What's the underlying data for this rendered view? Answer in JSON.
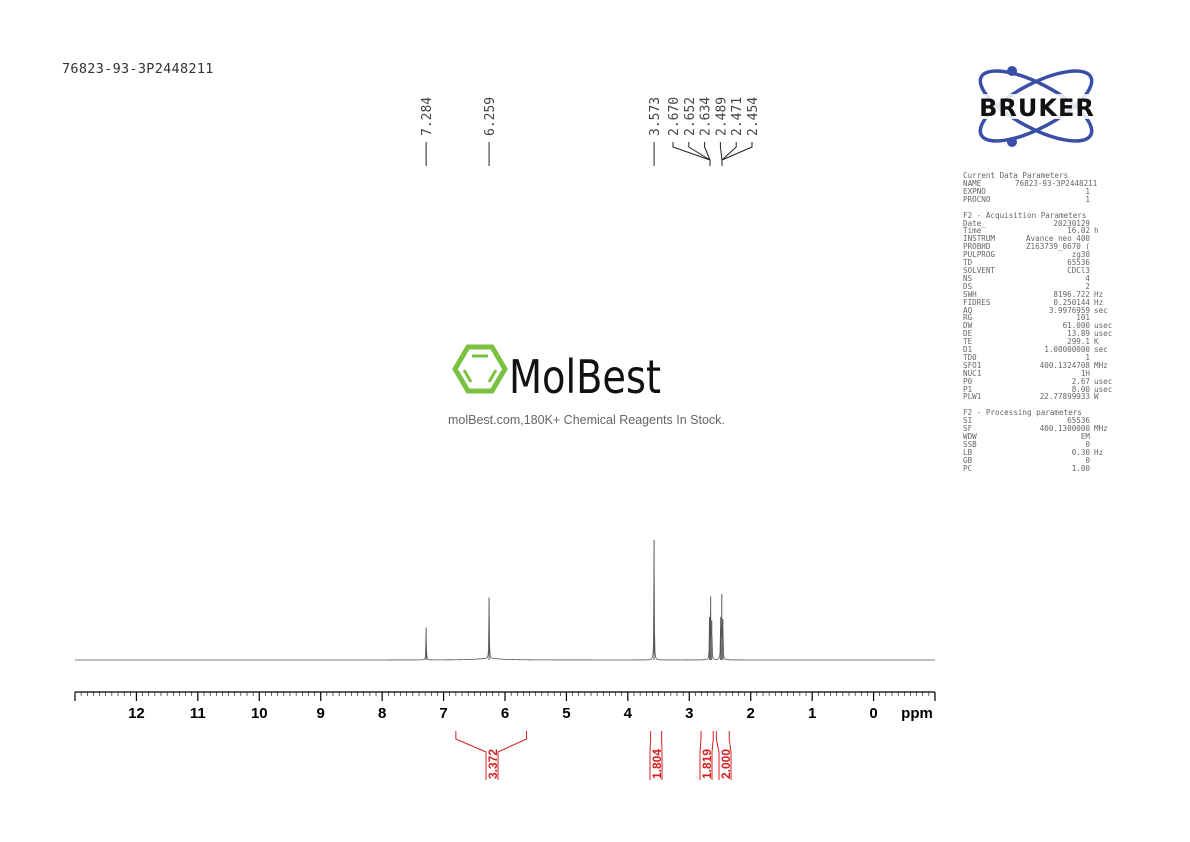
{
  "sample_title": "76823-93-3P2448211",
  "logos": {
    "bruker": "BRUKER",
    "molbest": "MolBest",
    "molbest_tagline": "molBest.com,180K+ Chemical Reagents In Stock.",
    "bruker_color": "#3a4fa8",
    "molbest_color": "#7cc242"
  },
  "parameters": {
    "current_header": "Current Data Parameters",
    "current": [
      {
        "k": "NAME",
        "v": "76823-93-3P2448211",
        "u": ""
      },
      {
        "k": "EXPNO",
        "v": "1",
        "u": ""
      },
      {
        "k": "PROCNO",
        "v": "1",
        "u": ""
      }
    ],
    "acq_header": "F2 - Acquisition Parameters",
    "acquisition": [
      {
        "k": "Date_",
        "v": "20230129",
        "u": ""
      },
      {
        "k": "Time",
        "v": "16.02",
        "u": "h"
      },
      {
        "k": "INSTRUM",
        "v": "Avance neo 400",
        "u": ""
      },
      {
        "k": "PROBHD",
        "v": "Z163739_0670 (",
        "u": ""
      },
      {
        "k": "PULPROG",
        "v": "zg30",
        "u": ""
      },
      {
        "k": "TD",
        "v": "65536",
        "u": ""
      },
      {
        "k": "SOLVENT",
        "v": "CDCl3",
        "u": ""
      },
      {
        "k": "NS",
        "v": "4",
        "u": ""
      },
      {
        "k": "DS",
        "v": "2",
        "u": ""
      },
      {
        "k": "SWH",
        "v": "8196.722",
        "u": "Hz"
      },
      {
        "k": "FIDRES",
        "v": "0.250144",
        "u": "Hz"
      },
      {
        "k": "AQ",
        "v": "3.9976959",
        "u": "sec"
      },
      {
        "k": "RG",
        "v": "101",
        "u": ""
      },
      {
        "k": "DW",
        "v": "61.000",
        "u": "usec"
      },
      {
        "k": "DE",
        "v": "13.89",
        "u": "usec"
      },
      {
        "k": "TE",
        "v": "299.1",
        "u": "K"
      },
      {
        "k": "D1",
        "v": "1.00000000",
        "u": "sec"
      },
      {
        "k": "TD0",
        "v": "1",
        "u": ""
      },
      {
        "k": "SFO1",
        "v": "400.1324708",
        "u": "MHz"
      },
      {
        "k": "NUC1",
        "v": "1H",
        "u": ""
      },
      {
        "k": "P0",
        "v": "2.67",
        "u": "usec"
      },
      {
        "k": "P1",
        "v": "8.00",
        "u": "usec"
      },
      {
        "k": "PLW1",
        "v": "22.77899933",
        "u": "W"
      }
    ],
    "proc_header": "F2 - Processing parameters",
    "processing": [
      {
        "k": "SI",
        "v": "65536",
        "u": ""
      },
      {
        "k": "SF",
        "v": "400.1300000",
        "u": "MHz"
      },
      {
        "k": "WDW",
        "v": "EM",
        "u": ""
      },
      {
        "k": "SSB",
        "v": "0",
        "u": ""
      },
      {
        "k": "LB",
        "v": "0.30",
        "u": "Hz"
      },
      {
        "k": "GB",
        "v": "0",
        "u": ""
      },
      {
        "k": "PC",
        "v": "1.00",
        "u": ""
      }
    ]
  },
  "chart_data": {
    "type": "line",
    "xlabel": "ppm",
    "xlim": [
      13,
      -1
    ],
    "x_ticks": [
      12,
      11,
      10,
      9,
      8,
      7,
      6,
      5,
      4,
      3,
      2,
      1,
      0
    ],
    "grid": false,
    "peaks": [
      {
        "ppm": 7.284,
        "label": "7.284",
        "height": 0.27
      },
      {
        "ppm": 6.259,
        "label": "6.259",
        "height": 0.52
      },
      {
        "ppm": 3.573,
        "label": "3.573",
        "height": 1.0
      },
      {
        "ppm": 2.67,
        "label": "2.670",
        "height": 0.35
      },
      {
        "ppm": 2.652,
        "label": "2.652",
        "height": 0.53
      },
      {
        "ppm": 2.634,
        "label": "2.634",
        "height": 0.33
      },
      {
        "ppm": 2.489,
        "label": "2.489",
        "height": 0.36
      },
      {
        "ppm": 2.471,
        "label": "2.471",
        "height": 0.55
      },
      {
        "ppm": 2.454,
        "label": "2.454",
        "height": 0.34
      }
    ],
    "integrals": [
      {
        "from": 6.8,
        "to": 5.65,
        "value": "3.372"
      },
      {
        "from": 3.63,
        "to": 3.45,
        "value": "1.804"
      },
      {
        "from": 2.81,
        "to": 2.61,
        "value": "1.819"
      },
      {
        "from": 2.56,
        "to": 2.35,
        "value": "2.000"
      }
    ],
    "spectrum_color": "#555555",
    "integral_color": "#d42020"
  }
}
